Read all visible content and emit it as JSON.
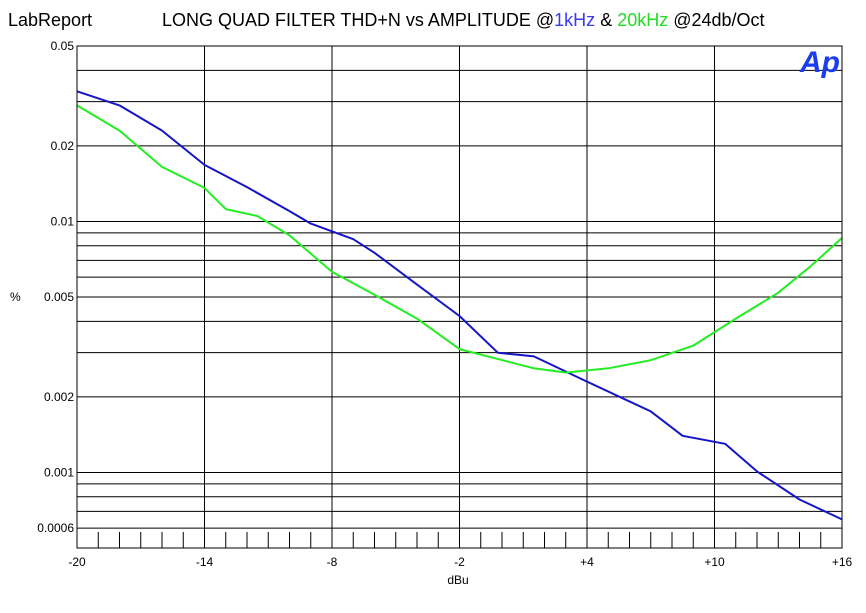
{
  "header": {
    "app_label": "LabReport",
    "title_prefix": "LONG QUAD FILTER THD+N vs AMPLITUDE @",
    "title_1k": "1kHz",
    "title_amp": " & ",
    "title_20k": "20kHz",
    "title_suffix": " @24db/Oct"
  },
  "logo": {
    "text": "Ap",
    "color": "#1a3df0"
  },
  "colors": {
    "series_1k": "#1515c8",
    "series_20k": "#22ee22",
    "title_1k": "#3a3af0",
    "title_20k": "#22dd22"
  },
  "chart_data": {
    "type": "line",
    "title": "LONG QUAD FILTER THD+N vs AMPLITUDE @1kHz & 20kHz @24db/Oct",
    "xlabel": "dBu",
    "ylabel": "%",
    "xlim": [
      -20,
      16
    ],
    "ylim": [
      0.0005,
      0.05
    ],
    "y_scale": "log",
    "grid": true,
    "x_ticks": [
      {
        "value": -20,
        "label": "-20"
      },
      {
        "value": -14,
        "label": "-14"
      },
      {
        "value": -8,
        "label": "-8"
      },
      {
        "value": -2,
        "label": "-2"
      },
      {
        "value": 4,
        "label": "+4"
      },
      {
        "value": 10,
        "label": "+10"
      },
      {
        "value": 16,
        "label": "+16"
      }
    ],
    "y_ticks": [
      {
        "value": 0.05,
        "label": "0.05"
      },
      {
        "value": 0.02,
        "label": "0.02"
      },
      {
        "value": 0.01,
        "label": "0.01"
      },
      {
        "value": 0.005,
        "label": "0.005"
      },
      {
        "value": 0.002,
        "label": "0.002"
      },
      {
        "value": 0.001,
        "label": "0.001"
      },
      {
        "value": 0.0006,
        "label": "0.0006"
      }
    ],
    "y_grid": [
      0.05,
      0.04,
      0.03,
      0.02,
      0.01,
      0.009,
      0.008,
      0.007,
      0.006,
      0.005,
      0.004,
      0.003,
      0.002,
      0.001,
      0.0009,
      0.0008,
      0.0007,
      0.0006
    ],
    "x_grid": [
      -20,
      -14,
      -8,
      -2,
      4,
      10,
      16
    ],
    "series": [
      {
        "name": "1kHz",
        "color": "#1515c8",
        "x": [
          -20,
          -18,
          -16,
          -14,
          -12,
          -10,
          -9,
          -7,
          -6,
          -4,
          -2,
          -0.2,
          1.5,
          4,
          7,
          8.5,
          10.5,
          12,
          14,
          16
        ],
        "y": [
          0.033,
          0.029,
          0.023,
          0.0168,
          0.0137,
          0.011,
          0.0098,
          0.0085,
          0.0075,
          0.0056,
          0.0042,
          0.003,
          0.0029,
          0.0023,
          0.00175,
          0.0014,
          0.0013,
          0.00101,
          0.00078,
          0.00065
        ]
      },
      {
        "name": "20kHz",
        "color": "#22ee22",
        "x": [
          -20,
          -18,
          -16,
          -14,
          -13,
          -11.5,
          -10,
          -8,
          -6,
          -4,
          -2,
          1.5,
          3,
          5,
          7,
          9,
          11,
          13,
          14.5,
          16
        ],
        "y": [
          0.029,
          0.023,
          0.0165,
          0.0136,
          0.0112,
          0.0105,
          0.0088,
          0.0063,
          0.0051,
          0.0041,
          0.0031,
          0.0026,
          0.0025,
          0.0026,
          0.0028,
          0.0032,
          0.0041,
          0.0052,
          0.0066,
          0.0086
        ]
      }
    ]
  }
}
